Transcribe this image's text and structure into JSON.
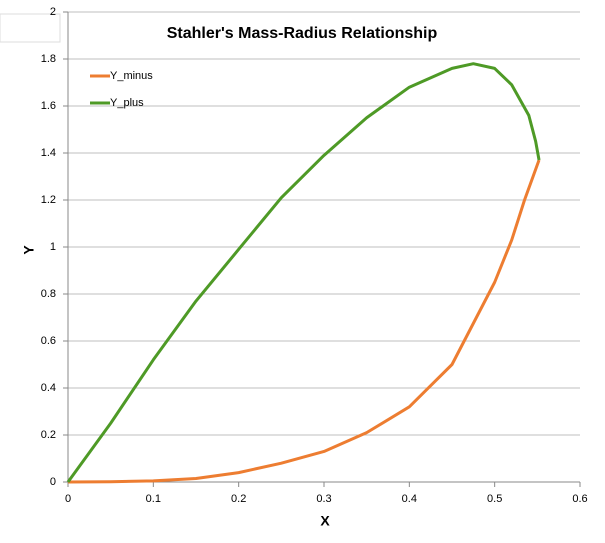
{
  "chart_data": {
    "type": "line",
    "title": "Stahler's Mass-Radius Relationship",
    "x_label": "X",
    "y_label": "Y",
    "xlim": [
      0,
      0.6
    ],
    "xticks": [
      0,
      0.1,
      0.2,
      0.3,
      0.4,
      0.5,
      0.6
    ],
    "ylim": [
      0,
      2
    ],
    "yticks": [
      0,
      0.2,
      0.4,
      0.6,
      0.8,
      1,
      1.2,
      1.4,
      1.6,
      1.8,
      2
    ],
    "grid": true,
    "legend": "top-left",
    "series": [
      {
        "name": "Y_minus",
        "color": "#ed7d31",
        "x": [
          0,
          0.05,
          0.1,
          0.15,
          0.2,
          0.25,
          0.3,
          0.35,
          0.4,
          0.45,
          0.5,
          0.52,
          0.535,
          0.545,
          0.552
        ],
        "values": [
          0,
          0.001,
          0.005,
          0.015,
          0.04,
          0.08,
          0.13,
          0.21,
          0.32,
          0.5,
          0.85,
          1.03,
          1.2,
          1.3,
          1.37
        ]
      },
      {
        "name": "Y_plus",
        "color": "#4e9a26",
        "x": [
          0,
          0.05,
          0.1,
          0.15,
          0.2,
          0.25,
          0.3,
          0.35,
          0.4,
          0.45,
          0.475,
          0.5,
          0.52,
          0.54,
          0.548,
          0.552
        ],
        "values": [
          0,
          0.25,
          0.52,
          0.77,
          0.99,
          1.21,
          1.39,
          1.55,
          1.68,
          1.76,
          1.78,
          1.76,
          1.69,
          1.56,
          1.45,
          1.37
        ]
      }
    ]
  }
}
